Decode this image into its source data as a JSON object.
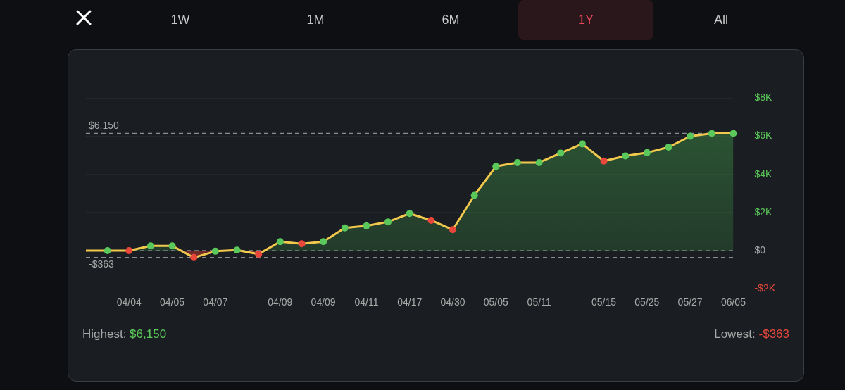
{
  "chart_data": {
    "type": "area",
    "categories": [
      null,
      null,
      "04/04",
      null,
      "04/05",
      null,
      "04/07",
      null,
      null,
      "04/09",
      null,
      "04/09",
      null,
      "04/11",
      null,
      "04/17",
      null,
      "04/30",
      null,
      "05/05",
      null,
      "05/11",
      null,
      null,
      "05/15",
      null,
      "05/25",
      null,
      "05/27",
      null,
      "06/05"
    ],
    "series": [
      {
        "color": "#f2c94c",
        "values": [
          0,
          0,
          0,
          250,
          250,
          -363,
          -30,
          30,
          -180,
          470,
          360,
          470,
          1190,
          1300,
          1510,
          1950,
          1590,
          1100,
          2900,
          4420,
          4620,
          4620,
          5120,
          5600,
          4700,
          4970,
          5140,
          5430,
          6000,
          6150,
          6150
        ],
        "colors": [
          null,
          "#5ac85a",
          "#e8483c",
          "#5ac85a",
          "#5ac85a",
          "#e8483c",
          "#5ac85a",
          "#5ac85a",
          "#e8483c",
          "#5ac85a",
          "#e8483c",
          "#5ac85a",
          "#5ac85a",
          "#5ac85a",
          "#5ac85a",
          "#5ac85a",
          "#e8483c",
          "#e8483c",
          "#5ac85a",
          "#5ac85a",
          "#5ac85a",
          "#5ac85a",
          "#5ac85a",
          "#5ac85a",
          "#e8483c",
          "#5ac85a",
          "#5ac85a",
          "#5ac85a",
          "#5ac85a",
          "#5ac85a",
          "#5ac85a"
        ]
      }
    ],
    "ylim": [
      -2000,
      8000
    ],
    "yticks": [
      {
        "value": -2000,
        "label": "-$2K"
      },
      {
        "value": 0,
        "label": "$0"
      },
      {
        "value": 2000,
        "label": "$2K"
      },
      {
        "value": 4000,
        "label": "$4K"
      },
      {
        "value": 6000,
        "label": "$6K"
      },
      {
        "value": 8000,
        "label": "$8K"
      }
    ],
    "grid": "y",
    "legend": false,
    "marker": "circle",
    "line_style": "solid",
    "ref_lines": [
      {
        "axis": "y",
        "value": 6150,
        "label": "$6,150",
        "line_style": "dashed"
      },
      {
        "axis": "y",
        "value": 0,
        "label": null,
        "line_style": "dashed"
      },
      {
        "axis": "y",
        "value": -363,
        "label": "-$363",
        "line_style": "dashed"
      }
    ],
    "annotations": [
      "1W",
      "1M",
      "6M",
      "1Y",
      "All",
      "Highest: $6,150",
      "Lowest: -$363"
    ]
  }
}
